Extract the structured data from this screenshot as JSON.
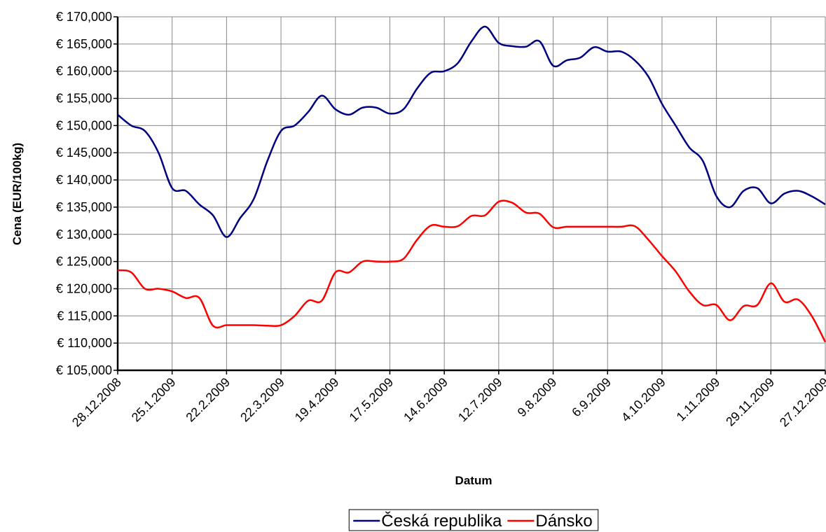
{
  "chart_data": {
    "type": "line",
    "x_label": "Datum",
    "y_label": "Cena (EUR/100kg)",
    "categories": [
      "28.12.2008",
      null,
      null,
      null,
      "25.1.2009",
      null,
      null,
      null,
      "22.2.2009",
      null,
      null,
      null,
      "22.3.2009",
      null,
      null,
      null,
      "19.4.2009",
      null,
      null,
      null,
      "17.5.2009",
      null,
      null,
      null,
      "14.6.2009",
      null,
      null,
      null,
      "12.7.2009",
      null,
      null,
      null,
      "9.8.2009",
      null,
      null,
      null,
      "6.9.2009",
      null,
      null,
      null,
      "4.10.2009",
      null,
      null,
      null,
      "1.11.2009",
      null,
      null,
      null,
      "29.11.2009",
      null,
      null,
      null,
      "27.12.2009"
    ],
    "series": [
      {
        "name": "Česká republika",
        "color": "#000080",
        "values": [
          152000,
          150000,
          149000,
          145000,
          138500,
          138000,
          135500,
          133500,
          129500,
          133000,
          136500,
          143500,
          149000,
          150000,
          152500,
          155500,
          153000,
          152000,
          153300,
          153300,
          152200,
          153000,
          156800,
          159700,
          160000,
          161500,
          165500,
          168200,
          165200,
          164600,
          164500,
          165500,
          161000,
          162000,
          162500,
          164400,
          163600,
          163600,
          162000,
          159000,
          154000,
          150000,
          146000,
          143500,
          137000,
          135000,
          138000,
          138500,
          135700,
          137500,
          138000,
          137000,
          135500
        ]
      },
      {
        "name": "Dánsko",
        "color": "#ff0000",
        "values": [
          123400,
          123000,
          120000,
          120000,
          119500,
          118300,
          118300,
          113200,
          113300,
          113300,
          113300,
          113200,
          113300,
          115000,
          117800,
          117800,
          123000,
          123000,
          125000,
          125000,
          125000,
          125500,
          129000,
          131600,
          131400,
          131500,
          133400,
          133500,
          136000,
          135800,
          134000,
          133800,
          131300,
          131400,
          131400,
          131400,
          131400,
          131400,
          131500,
          129000,
          126000,
          123200,
          119500,
          117000,
          117000,
          114200,
          116800,
          117000,
          121000,
          117600,
          118000,
          115000,
          110200
        ]
      }
    ],
    "ylim": [
      105000,
      170000
    ],
    "yticks": [
      {
        "value": 105000,
        "label": "€ 105,000"
      },
      {
        "value": 110000,
        "label": "€ 110,000"
      },
      {
        "value": 115000,
        "label": "€ 115,000"
      },
      {
        "value": 120000,
        "label": "€ 120,000"
      },
      {
        "value": 125000,
        "label": "€ 125,000"
      },
      {
        "value": 130000,
        "label": "€ 130,000"
      },
      {
        "value": 135000,
        "label": "€ 135,000"
      },
      {
        "value": 140000,
        "label": "€ 140,000"
      },
      {
        "value": 145000,
        "label": "€ 145,000"
      },
      {
        "value": 150000,
        "label": "€ 150,000"
      },
      {
        "value": 155000,
        "label": "€ 155,000"
      },
      {
        "value": 160000,
        "label": "€ 160,000"
      },
      {
        "value": 165000,
        "label": "€ 165,000"
      },
      {
        "value": 170000,
        "label": "€ 170,000"
      }
    ],
    "grid": true,
    "legend": "bottom"
  }
}
